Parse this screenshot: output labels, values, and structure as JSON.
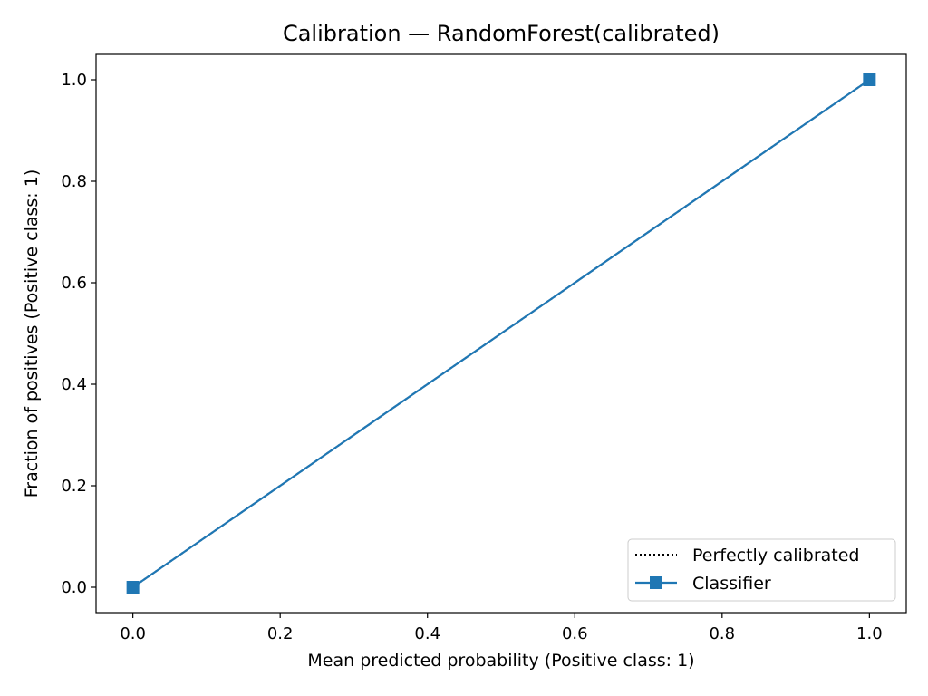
{
  "chart_data": {
    "type": "line",
    "title": "Calibration — RandomForest(calibrated)",
    "xlabel": "Mean predicted probability (Positive class: 1)",
    "ylabel": "Fraction of positives (Positive class: 1)",
    "xlim": [
      -0.05,
      1.05
    ],
    "ylim": [
      -0.05,
      1.05
    ],
    "xticks": [
      0.0,
      0.2,
      0.4,
      0.6,
      0.8,
      1.0
    ],
    "yticks": [
      0.0,
      0.2,
      0.4,
      0.6,
      0.8,
      1.0
    ],
    "xtick_labels": [
      "0.0",
      "0.2",
      "0.4",
      "0.6",
      "0.8",
      "1.0"
    ],
    "ytick_labels": [
      "0.0",
      "0.2",
      "0.4",
      "0.6",
      "0.8",
      "1.0"
    ],
    "grid": false,
    "legend_position": "lower-right",
    "series": [
      {
        "name": "Perfectly calibrated",
        "style": "dotted",
        "marker": "none",
        "color": "#000000",
        "x": [
          0,
          1
        ],
        "y": [
          0,
          1
        ]
      },
      {
        "name": "Classifier",
        "style": "solid",
        "marker": "square",
        "color": "#1f77b4",
        "x": [
          0.0,
          1.0
        ],
        "y": [
          0.0,
          1.0
        ]
      }
    ]
  }
}
